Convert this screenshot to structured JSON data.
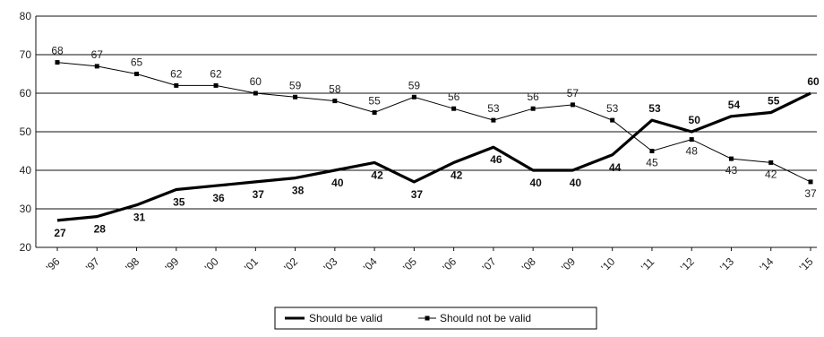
{
  "chart_data": {
    "type": "line",
    "x": [
      "'96",
      "'97",
      "'98",
      "'99",
      "'00",
      "'01",
      "'02",
      "'03",
      "'04",
      "'05",
      "'06",
      "'07",
      "'08",
      "'09",
      "'10",
      "'11",
      "'12",
      "'13",
      "'14",
      "'15"
    ],
    "ylim": [
      20,
      80
    ],
    "yticks": [
      "20",
      "30",
      "40",
      "50",
      "60",
      "70",
      "80"
    ],
    "grid": true,
    "legend_position": "bottom",
    "series": [
      {
        "name": "Should be valid",
        "color": "#000000",
        "points": [
          {
            "x": "1996",
            "y": 27
          },
          {
            "x": "1997",
            "y": 28
          },
          {
            "x": "1998",
            "y": 31
          },
          {
            "x": "1999",
            "y": 35
          },
          {
            "x": "2000",
            "y": 36
          },
          {
            "x": "2001",
            "y": 37
          },
          {
            "x": "2002",
            "y": 38
          },
          {
            "x": "2003",
            "y": 40
          },
          {
            "x": "2004",
            "y": 42
          },
          {
            "x": "2005",
            "y": 37
          },
          {
            "x": "2006",
            "y": 42
          },
          {
            "x": "2007",
            "y": 46
          },
          {
            "x": "2008",
            "y": 40
          },
          {
            "x": "2009",
            "y": 40
          },
          {
            "x": "2010",
            "y": 44
          },
          {
            "x": "2011",
            "y": 53
          },
          {
            "x": "2012",
            "y": 50
          },
          {
            "x": "2013",
            "y": 54
          },
          {
            "x": "2014",
            "y": 55
          },
          {
            "x": "2015",
            "y": 60
          }
        ],
        "labels": [
          "27",
          "28",
          "31",
          "35",
          "36",
          "37",
          "38",
          "40",
          "42",
          "37",
          "42",
          "46",
          "40",
          "40",
          "44",
          "53",
          "50",
          "54",
          "55",
          "60"
        ]
      },
      {
        "name": "Should not be valid",
        "color": "#000000",
        "points": [
          {
            "x": "1996",
            "y": 68
          },
          {
            "x": "1997",
            "y": 67
          },
          {
            "x": "1998",
            "y": 65
          },
          {
            "x": "1999",
            "y": 62
          },
          {
            "x": "2000",
            "y": 62
          },
          {
            "x": "2001",
            "y": 60
          },
          {
            "x": "2002",
            "y": 59
          },
          {
            "x": "2003",
            "y": 58
          },
          {
            "x": "2004",
            "y": 55
          },
          {
            "x": "2005",
            "y": 59
          },
          {
            "x": "2006",
            "y": 56
          },
          {
            "x": "2007",
            "y": 53
          },
          {
            "x": "2008",
            "y": 56
          },
          {
            "x": "2009",
            "y": 57
          },
          {
            "x": "2010",
            "y": 53
          },
          {
            "x": "2011",
            "y": 45
          },
          {
            "x": "2012",
            "y": 48
          },
          {
            "x": "2013",
            "y": 43
          },
          {
            "x": "2014",
            "y": 42
          },
          {
            "x": "2015",
            "y": 37
          }
        ],
        "labels": [
          "68",
          "67",
          "65",
          "62",
          "62",
          "60",
          "59",
          "58",
          "55",
          "59",
          "56",
          "53",
          "56",
          "57",
          "53",
          "45",
          "48",
          "43",
          "42",
          "37"
        ]
      }
    ]
  }
}
